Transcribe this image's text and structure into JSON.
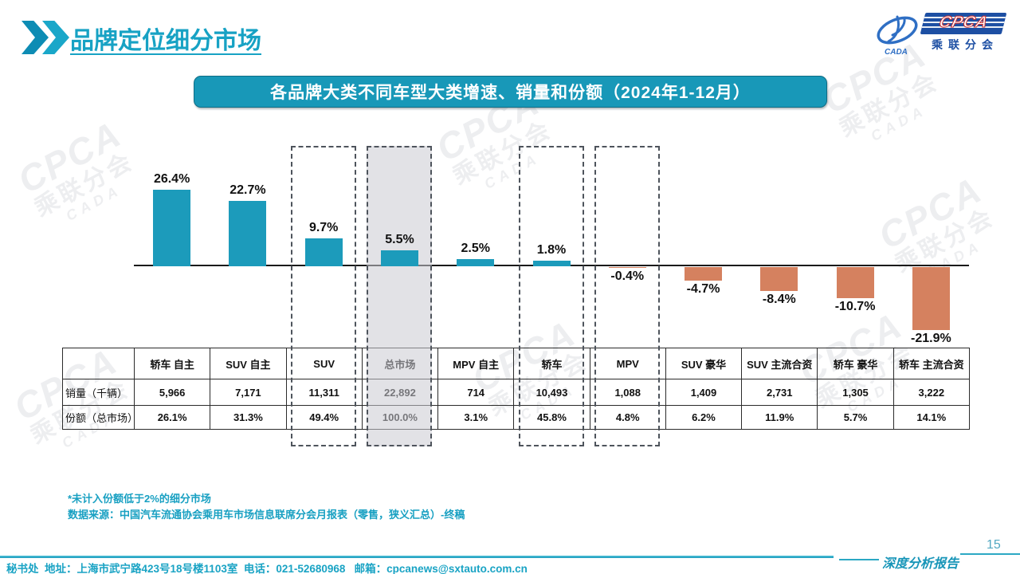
{
  "header": {
    "title": "品牌定位细分市场"
  },
  "logo": {
    "cpca": "CPCA",
    "cada": "CADA",
    "org": "乘联分会"
  },
  "banner": {
    "title": "各品牌大类不同车型大类增速、销量和份额（2024年1-12月）"
  },
  "chart_data": {
    "type": "bar",
    "title": "各品牌大类不同车型大类增速、销量和份额（2024年1-12月）",
    "categories": [
      "轿车 自主",
      "SUV 自主",
      "SUV",
      "总市场",
      "MPV 自主",
      "轿车",
      "MPV",
      "SUV 豪华",
      "SUV 主流合资",
      "轿车 豪华",
      "轿车 主流合资"
    ],
    "values": [
      26.4,
      22.7,
      9.7,
      5.5,
      2.5,
      1.8,
      -0.4,
      -4.7,
      -8.4,
      -10.7,
      -21.9
    ],
    "value_labels": [
      "26.4%",
      "22.7%",
      "9.7%",
      "5.5%",
      "2.5%",
      "1.8%",
      "-0.4%",
      "-4.7%",
      "-8.4%",
      "-10.7%",
      "-21.9%"
    ],
    "unit": "%",
    "ylim": [
      -25,
      30
    ],
    "grid": false,
    "legend": false,
    "bar_color_positive": "#1C9BBB",
    "bar_color_negative": "#D5815F",
    "highlight_boxes": [
      {
        "category": "SUV",
        "index": 2,
        "filled": false
      },
      {
        "category": "总市场",
        "index": 3,
        "filled": true
      },
      {
        "category": "轿车",
        "index": 5,
        "filled": false
      },
      {
        "category": "MPV",
        "index": 6,
        "filled": false
      }
    ]
  },
  "table": {
    "columns": [
      "",
      "轿车 自主",
      "SUV 自主",
      "SUV",
      "总市场",
      "MPV 自主",
      "轿车",
      "MPV",
      "SUV 豪华",
      "SUV 主流合资",
      "轿车 豪华",
      "轿车 主流合资"
    ],
    "rows": [
      {
        "label": "销量（千辆）",
        "values": [
          "5,966",
          "7,171",
          "11,311",
          "22,892",
          "714",
          "10,493",
          "1,088",
          "1,409",
          "2,731",
          "1,305",
          "3,222"
        ]
      },
      {
        "label": "份额（总市场）",
        "values": [
          "26.1%",
          "31.3%",
          "49.4%",
          "100.0%",
          "3.1%",
          "45.8%",
          "4.8%",
          "6.2%",
          "11.9%",
          "5.7%",
          "14.1%"
        ]
      }
    ]
  },
  "notes": {
    "line1": "*未计入份额低于2%的细分市场",
    "line2": "数据来源：中国汽车流通协会乘用车市场信息联席分会月报表（零售，狭义汇总）-终稿"
  },
  "footer": {
    "contact": "秘书处  地址：上海市武宁路423号18号楼1103室  电话：021-52680968   邮箱：cpcanews@sxtauto.com.cn",
    "report_label": "深度分析报告",
    "page_number": "15"
  },
  "watermark": {
    "line1": "CPCA",
    "line2": "乘联分会",
    "line3": "CADA"
  }
}
